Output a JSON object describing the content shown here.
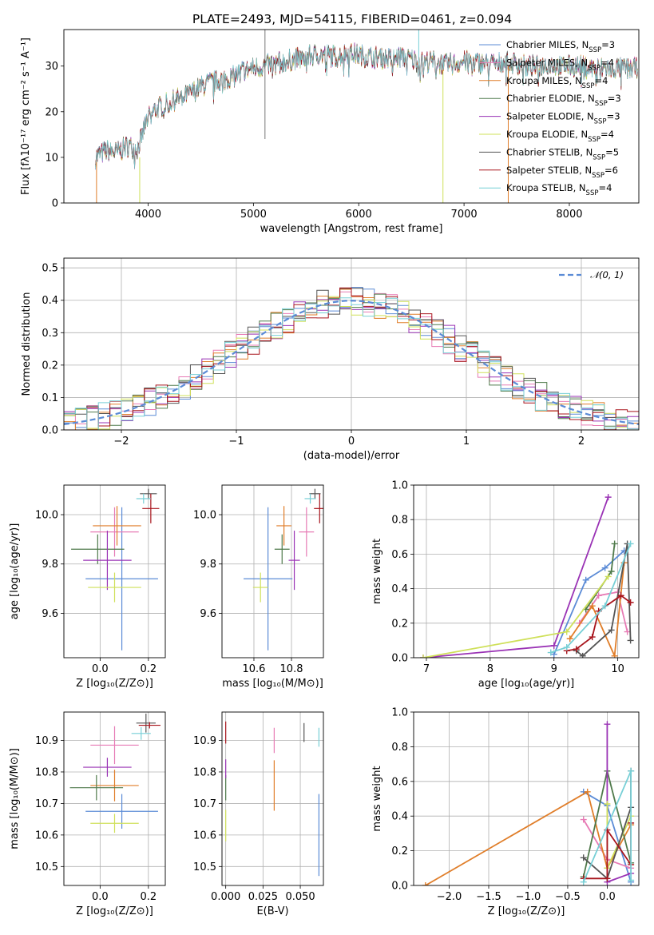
{
  "title": "PLATE=2493, MJD=54115, FIBERID=0461, z=0.094",
  "colors": {
    "Chabrier MILES": "#5b8bd6",
    "Salpeter MILES": "#e77bb5",
    "Kroupa MILES": "#e07e2a",
    "Chabrier ELODIE": "#4f7a4b",
    "Salpeter ELODIE": "#9a33b5",
    "Kroupa ELODIE": "#cfe05a",
    "Chabrier STELIB": "#555555",
    "Salpeter STELIB": "#a8141c",
    "Kroupa STELIB": "#77cfd6"
  },
  "legend": [
    {
      "key": "Chabrier MILES",
      "label": "Chabrier MILES, N",
      "sub": "SSP",
      "tail": "=3"
    },
    {
      "key": "Salpeter MILES",
      "label": "Salpeter MILES, N",
      "sub": "SSP",
      "tail": "=4"
    },
    {
      "key": "Kroupa MILES",
      "label": "Kroupa MILES, N",
      "sub": "SSP",
      "tail": "=4"
    },
    {
      "key": "Chabrier ELODIE",
      "label": "Chabrier ELODIE, N",
      "sub": "SSP",
      "tail": "=3"
    },
    {
      "key": "Salpeter ELODIE",
      "label": "Salpeter ELODIE, N",
      "sub": "SSP",
      "tail": "=3"
    },
    {
      "key": "Kroupa ELODIE",
      "label": "Kroupa ELODIE, N",
      "sub": "SSP",
      "tail": "=4"
    },
    {
      "key": "Chabrier STELIB",
      "label": "Chabrier STELIB, N",
      "sub": "SSP",
      "tail": "=5"
    },
    {
      "key": "Salpeter STELIB",
      "label": "Salpeter STELIB, N",
      "sub": "SSP",
      "tail": "=6"
    },
    {
      "key": "Kroupa STELIB",
      "label": "Kroupa STELIB, N",
      "sub": "SSP",
      "tail": "=4"
    }
  ],
  "chart_data": [
    {
      "id": "spectrum",
      "type": "line",
      "xlabel": "wavelength [Angstrom, rest frame]",
      "ylabel": "Flux [fλ10⁻¹⁷ erg cm⁻² s⁻¹ A⁻¹]",
      "xlim": [
        3200,
        8660
      ],
      "ylim": [
        0,
        38
      ],
      "xticks": [
        4000,
        5000,
        6000,
        7000,
        8000
      ],
      "yticks": [
        0,
        10,
        20,
        30
      ],
      "x": [
        3500,
        3600,
        3700,
        3800,
        3900,
        4000,
        4100,
        4200,
        4300,
        4400,
        4500,
        4600,
        4700,
        4800,
        4900,
        5000,
        5100,
        5200,
        5300,
        5400,
        5500,
        5600,
        5700,
        5800,
        5900,
        6000,
        6100,
        6200,
        6300,
        6400,
        6500,
        6600,
        6700,
        6800,
        6900,
        7000,
        7100,
        7200,
        7300,
        7400,
        7500,
        7600,
        7700,
        7800,
        7900,
        8000,
        8100,
        8200,
        8300,
        8400,
        8500,
        8600
      ],
      "flux": [
        10,
        11.5,
        11,
        12.5,
        12,
        19,
        21,
        22,
        23,
        24,
        25.5,
        26.5,
        27,
        27.5,
        29,
        29.5,
        30,
        30.5,
        31,
        31.5,
        32,
        32.5,
        32.5,
        32,
        33,
        32.5,
        32,
        32,
        31.5,
        32,
        31.5,
        31,
        31,
        30.5,
        30.5,
        31,
        31,
        30.5,
        30.5,
        31,
        30.5,
        30,
        30,
        30.5,
        30,
        30,
        30,
        29.5,
        29.5,
        29.5,
        29.5,
        29.5
      ],
      "grid": false,
      "legend_placement": "top-right"
    },
    {
      "id": "residuals",
      "type": "histogram",
      "xlabel": "(data-model)/error",
      "ylabel": "Normed distribution",
      "xlim": [
        -2.5,
        2.5
      ],
      "ylim": [
        0,
        0.53
      ],
      "xticks": [
        -2,
        -1,
        0,
        1,
        2
      ],
      "yticks": [
        0.0,
        0.1,
        0.2,
        0.3,
        0.4,
        0.5
      ],
      "bin_edges": [
        -2.5,
        -2.4,
        -2.3,
        -2.2,
        -2.1,
        -2.0,
        -1.9,
        -1.8,
        -1.7,
        -1.6,
        -1.5,
        -1.4,
        -1.3,
        -1.2,
        -1.1,
        -1.0,
        -0.9,
        -0.8,
        -0.7,
        -0.6,
        -0.5,
        -0.4,
        -0.3,
        -0.2,
        -0.1,
        0.0,
        0.1,
        0.2,
        0.3,
        0.4,
        0.5,
        0.6,
        0.7,
        0.8,
        0.9,
        1.0,
        1.1,
        1.2,
        1.3,
        1.4,
        1.5,
        1.6,
        1.7,
        1.8,
        1.9,
        2.0,
        2.1,
        2.2,
        2.3,
        2.4,
        2.5
      ],
      "reference_curve": "N(0,1)",
      "reference_label": "𝒩(0, 1)",
      "grid": true,
      "legend_placement": "top-right"
    },
    {
      "id": "age-vs-Z",
      "type": "scatter",
      "xlabel": "Z [log₁₀(Z/Z⊙)]",
      "ylabel": "age  [log₁₀(age/yr)]",
      "xlim": [
        -0.15,
        0.27
      ],
      "ylim": [
        9.42,
        10.12
      ],
      "xticks": [
        0.0,
        0.2
      ],
      "yticks": [
        9.6,
        9.8,
        10.0
      ],
      "points": [
        {
          "key": "Chabrier MILES",
          "x": 0.09,
          "y": 9.74,
          "xerr": 0.15,
          "yerr": 0.29
        },
        {
          "key": "Salpeter MILES",
          "x": 0.06,
          "y": 9.93,
          "xerr": 0.1,
          "yerr": 0.1
        },
        {
          "key": "Kroupa MILES",
          "x": 0.07,
          "y": 9.955,
          "xerr": 0.1,
          "yerr": 0.08
        },
        {
          "key": "Chabrier ELODIE",
          "x": -0.01,
          "y": 9.86,
          "xerr": 0.11,
          "yerr": 0.06
        },
        {
          "key": "Salpeter ELODIE",
          "x": 0.03,
          "y": 9.815,
          "xerr": 0.1,
          "yerr": 0.12
        },
        {
          "key": "Kroupa ELODIE",
          "x": 0.06,
          "y": 9.705,
          "xerr": 0.11,
          "yerr": 0.06
        },
        {
          "key": "Chabrier STELIB",
          "x": 0.2,
          "y": 10.085,
          "xerr": 0.035,
          "yerr": 0.02
        },
        {
          "key": "Salpeter STELIB",
          "x": 0.21,
          "y": 10.025,
          "xerr": 0.035,
          "yerr": 0.06
        },
        {
          "key": "Kroupa STELIB",
          "x": 0.18,
          "y": 10.065,
          "xerr": 0.03,
          "yerr": 0.02
        }
      ]
    },
    {
      "id": "age-vs-mass",
      "type": "scatter",
      "xlabel": "mass [log₁₀(M/M⊙)]",
      "ylabel": "",
      "xlim": [
        10.43,
        10.97
      ],
      "ylim": [
        9.42,
        10.12
      ],
      "xticks": [
        10.6,
        10.8
      ],
      "yticks": [
        9.6,
        9.8,
        10.0
      ],
      "points": [
        {
          "key": "Chabrier MILES",
          "x": 10.675,
          "y": 9.74,
          "xerr": 0.13,
          "yerr": 0.29
        },
        {
          "key": "Salpeter MILES",
          "x": 10.88,
          "y": 9.93,
          "xerr": 0.04,
          "yerr": 0.1
        },
        {
          "key": "Kroupa MILES",
          "x": 10.76,
          "y": 9.955,
          "xerr": 0.04,
          "yerr": 0.08
        },
        {
          "key": "Chabrier ELODIE",
          "x": 10.75,
          "y": 9.86,
          "xerr": 0.04,
          "yerr": 0.06
        },
        {
          "key": "Salpeter ELODIE",
          "x": 10.815,
          "y": 9.815,
          "xerr": 0.03,
          "yerr": 0.12
        },
        {
          "key": "Kroupa ELODIE",
          "x": 10.635,
          "y": 9.705,
          "xerr": 0.04,
          "yerr": 0.06
        },
        {
          "key": "Chabrier STELIB",
          "x": 10.925,
          "y": 10.085,
          "xerr": 0.03,
          "yerr": 0.02
        },
        {
          "key": "Salpeter STELIB",
          "x": 10.95,
          "y": 10.025,
          "xerr": 0.03,
          "yerr": 0.06
        },
        {
          "key": "Kroupa STELIB",
          "x": 10.9,
          "y": 10.065,
          "xerr": 0.03,
          "yerr": 0.02
        }
      ]
    },
    {
      "id": "weight-vs-age",
      "type": "line",
      "xlabel": "age  [log₁₀(age/yr)]",
      "ylabel": "mass weight",
      "xlim": [
        6.8,
        10.33
      ],
      "ylim": [
        0,
        1.0
      ],
      "xticks": [
        7,
        8,
        9,
        10
      ],
      "yticks": [
        0.0,
        0.2,
        0.4,
        0.6,
        0.8,
        1.0
      ],
      "series": [
        {
          "key": "Chabrier MILES",
          "x": [
            9.0,
            9.5,
            9.8,
            10.1
          ],
          "y": [
            0.02,
            0.45,
            0.52,
            0.62
          ]
        },
        {
          "key": "Salpeter MILES",
          "x": [
            9.4,
            9.7,
            10.0,
            10.15
          ],
          "y": [
            0.2,
            0.36,
            0.38,
            0.15
          ]
        },
        {
          "key": "Kroupa MILES",
          "x": [
            9.25,
            9.6,
            9.95,
            10.1
          ],
          "y": [
            0.11,
            0.3,
            0.01,
            0.55
          ]
        },
        {
          "key": "Chabrier ELODIE",
          "x": [
            9.5,
            9.9,
            9.95
          ],
          "y": [
            0.28,
            0.5,
            0.66
          ]
        },
        {
          "key": "Salpeter ELODIE",
          "x": [
            6.95,
            9.0,
            9.85
          ],
          "y": [
            0.0,
            0.07,
            0.93
          ]
        },
        {
          "key": "Kroupa ELODIE",
          "x": [
            6.95,
            9.2,
            9.85
          ],
          "y": [
            0.0,
            0.15,
            0.47
          ]
        },
        {
          "key": "Chabrier STELIB",
          "x": [
            9.35,
            9.45,
            9.9,
            10.15,
            10.2
          ],
          "y": [
            0.04,
            0.01,
            0.16,
            0.66,
            0.1
          ]
        },
        {
          "key": "Salpeter STELIB",
          "x": [
            9.2,
            9.35,
            9.6,
            9.7,
            10.05,
            10.2
          ],
          "y": [
            0.04,
            0.05,
            0.12,
            0.27,
            0.36,
            0.32
          ]
        },
        {
          "key": "Kroupa STELIB",
          "x": [
            8.95,
            9.2,
            9.8,
            10.2
          ],
          "y": [
            0.03,
            0.06,
            0.3,
            0.66
          ]
        }
      ]
    },
    {
      "id": "mass-vs-Z",
      "type": "scatter",
      "xlabel": "Z [log₁₀(Z/Z⊙)]",
      "ylabel": "mass [log₁₀(M/M⊙)]",
      "xlim": [
        -0.15,
        0.27
      ],
      "ylim": [
        10.44,
        10.99
      ],
      "xticks": [
        0.0,
        0.2
      ],
      "yticks": [
        10.5,
        10.6,
        10.7,
        10.8,
        10.9
      ],
      "points": [
        {
          "key": "Chabrier MILES",
          "x": 0.09,
          "y": 10.675,
          "xerr": 0.15,
          "yerr": 0.055
        },
        {
          "key": "Salpeter MILES",
          "x": 0.06,
          "y": 10.885,
          "xerr": 0.1,
          "yerr": 0.06
        },
        {
          "key": "Kroupa MILES",
          "x": 0.06,
          "y": 10.757,
          "xerr": 0.1,
          "yerr": 0.05
        },
        {
          "key": "Chabrier ELODIE",
          "x": -0.015,
          "y": 10.75,
          "xerr": 0.11,
          "yerr": 0.04
        },
        {
          "key": "Salpeter ELODIE",
          "x": 0.03,
          "y": 10.815,
          "xerr": 0.1,
          "yerr": 0.03
        },
        {
          "key": "Kroupa ELODIE",
          "x": 0.06,
          "y": 10.637,
          "xerr": 0.1,
          "yerr": 0.03
        },
        {
          "key": "Chabrier STELIB",
          "x": 0.19,
          "y": 10.955,
          "xerr": 0.04,
          "yerr": 0.03
        },
        {
          "key": "Salpeter STELIB",
          "x": 0.205,
          "y": 10.948,
          "xerr": 0.045,
          "yerr": 0.01
        },
        {
          "key": "Kroupa STELIB",
          "x": 0.17,
          "y": 10.922,
          "xerr": 0.04,
          "yerr": 0.02
        }
      ]
    },
    {
      "id": "mass-vs-EBV",
      "type": "scatter",
      "xlabel": "E(B-V)",
      "ylabel": "",
      "xlim": [
        -0.0025,
        0.0655
      ],
      "ylim": [
        10.44,
        10.99
      ],
      "xticks": [
        0.0,
        0.025,
        0.05
      ],
      "xtick_labels": [
        "0.000",
        "0.025",
        "0.050"
      ],
      "yticks": [
        10.5,
        10.6,
        10.7,
        10.8,
        10.9
      ],
      "points": [
        {
          "key": "Chabrier MILES",
          "x": 0.0625,
          "y": 10.6,
          "xerr": 0,
          "yerr": 0.13
        },
        {
          "key": "Salpeter MILES",
          "x": 0.0325,
          "y": 10.9,
          "xerr": 0,
          "yerr": 0.04
        },
        {
          "key": "Kroupa MILES",
          "x": 0.0325,
          "y": 10.757,
          "xerr": 0,
          "yerr": 0.08
        },
        {
          "key": "Chabrier ELODIE",
          "x": 0.0,
          "y": 10.75,
          "xerr": 0,
          "yerr": 0.04
        },
        {
          "key": "Salpeter ELODIE",
          "x": 0.0,
          "y": 10.81,
          "xerr": 0,
          "yerr": 0.03
        },
        {
          "key": "Kroupa ELODIE",
          "x": 0.0,
          "y": 10.63,
          "xerr": 0,
          "yerr": 0.05
        },
        {
          "key": "Chabrier STELIB",
          "x": 0.0525,
          "y": 10.925,
          "xerr": 0,
          "yerr": 0.03
        },
        {
          "key": "Salpeter STELIB",
          "x": 0.0,
          "y": 10.925,
          "xerr": 0,
          "yerr": 0.035
        },
        {
          "key": "Kroupa STELIB",
          "x": 0.0625,
          "y": 10.91,
          "xerr": 0,
          "yerr": 0.03
        }
      ]
    },
    {
      "id": "weight-vs-Z",
      "type": "line",
      "xlabel": "Z [log₁₀(Z/Z⊙)]",
      "ylabel": "mass weight",
      "xlim": [
        -2.45,
        0.4
      ],
      "ylim": [
        0,
        1.0
      ],
      "xticks": [
        -2.0,
        -1.5,
        -1.0,
        -0.5,
        0.0
      ],
      "xtick_labels": [
        "−2.0",
        "−1.5",
        "−1.0",
        "−0.5",
        "0.0"
      ],
      "yticks": [
        0.0,
        0.2,
        0.4,
        0.6,
        0.8,
        1.0
      ],
      "series": [
        {
          "key": "Chabrier MILES",
          "x": [
            -0.3,
            0.0,
            0.3
          ],
          "y": [
            0.54,
            0.46,
            0.02
          ]
        },
        {
          "key": "Salpeter MILES",
          "x": [
            -0.3,
            0.0,
            0.3
          ],
          "y": [
            0.38,
            0.15,
            0.1
          ]
        },
        {
          "key": "Kroupa MILES",
          "x": [
            -2.3,
            -0.25,
            0.0,
            0.3
          ],
          "y": [
            0.0,
            0.54,
            0.1,
            0.35
          ]
        },
        {
          "key": "Chabrier ELODIE",
          "x": [
            -0.3,
            0.0,
            0.3
          ],
          "y": [
            0.05,
            0.66,
            0.13
          ]
        },
        {
          "key": "Salpeter ELODIE",
          "x": [
            0.0,
            0.0,
            0.3
          ],
          "y": [
            0.93,
            0.02,
            0.07
          ]
        },
        {
          "key": "Kroupa ELODIE",
          "x": [
            0.0,
            0.0,
            0.3
          ],
          "y": [
            0.47,
            0.1,
            0.4
          ]
        },
        {
          "key": "Chabrier STELIB",
          "x": [
            -0.3,
            0.0,
            0.3,
            0.3
          ],
          "y": [
            0.16,
            0.04,
            0.45,
            0.66
          ]
        },
        {
          "key": "Salpeter STELIB",
          "x": [
            -0.3,
            0.0,
            0.0,
            0.3,
            0.3
          ],
          "y": [
            0.04,
            0.04,
            0.32,
            0.12,
            0.36
          ]
        },
        {
          "key": "Kroupa STELIB",
          "x": [
            -0.3,
            0.3,
            0.3
          ],
          "y": [
            0.02,
            0.66,
            0.03
          ]
        }
      ]
    }
  ]
}
